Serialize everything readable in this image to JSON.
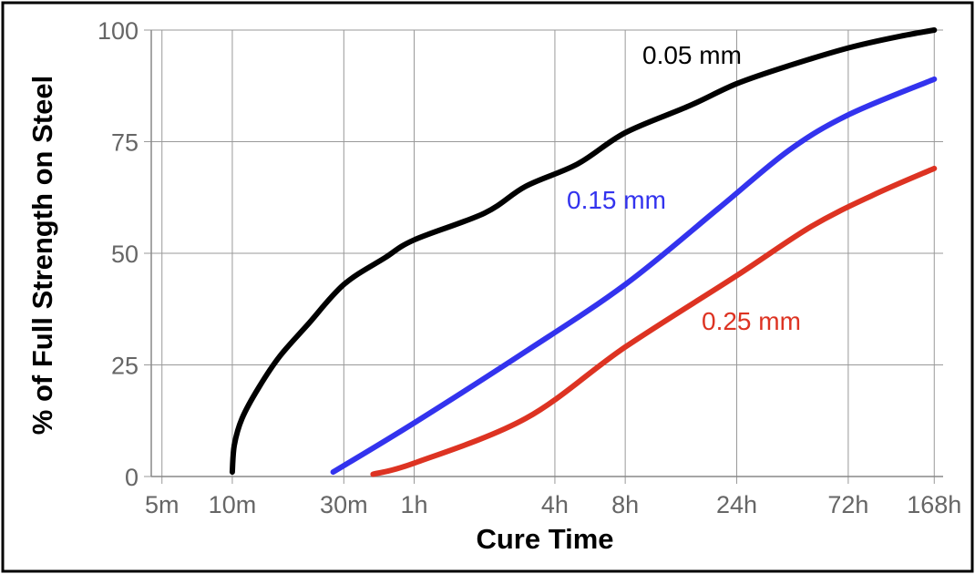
{
  "chart_data": {
    "type": "line",
    "title": "",
    "xlabel": "Cure Time",
    "ylabel": "% of Full Strength on Steel",
    "x_scale": "log",
    "x_unit": "minutes",
    "xlim": [
      4.5,
      11000
    ],
    "ylim": [
      0,
      100
    ],
    "x_ticks": [
      {
        "label": "5m",
        "value": 5
      },
      {
        "label": "10m",
        "value": 10
      },
      {
        "label": "30m",
        "value": 30
      },
      {
        "label": "1h",
        "value": 60
      },
      {
        "label": "4h",
        "value": 240
      },
      {
        "label": "8h",
        "value": 480
      },
      {
        "label": "24h",
        "value": 1440
      },
      {
        "label": "72h",
        "value": 4320
      },
      {
        "label": "168h",
        "value": 10080
      }
    ],
    "y_ticks": [
      {
        "label": "0",
        "value": 0
      },
      {
        "label": "25",
        "value": 25
      },
      {
        "label": "50",
        "value": 50
      },
      {
        "label": "75",
        "value": 75
      },
      {
        "label": "100",
        "value": 100
      }
    ],
    "grid": true,
    "series": [
      {
        "name": "0.05 mm",
        "color": "#000000",
        "points": [
          {
            "x": 10,
            "y": 1
          },
          {
            "x": 10.2,
            "y": 7
          },
          {
            "x": 11,
            "y": 13
          },
          {
            "x": 13,
            "y": 20
          },
          {
            "x": 16,
            "y": 27
          },
          {
            "x": 21,
            "y": 34
          },
          {
            "x": 30,
            "y": 43
          },
          {
            "x": 45,
            "y": 49
          },
          {
            "x": 60,
            "y": 53
          },
          {
            "x": 120,
            "y": 59
          },
          {
            "x": 180,
            "y": 65
          },
          {
            "x": 300,
            "y": 70
          },
          {
            "x": 480,
            "y": 77
          },
          {
            "x": 900,
            "y": 83
          },
          {
            "x": 1440,
            "y": 88
          },
          {
            "x": 2400,
            "y": 92
          },
          {
            "x": 4320,
            "y": 96
          },
          {
            "x": 7000,
            "y": 98.5
          },
          {
            "x": 10080,
            "y": 100
          }
        ]
      },
      {
        "name": "0.15 mm",
        "color": "#3333ee",
        "points": [
          {
            "x": 27,
            "y": 1
          },
          {
            "x": 60,
            "y": 12
          },
          {
            "x": 180,
            "y": 28
          },
          {
            "x": 480,
            "y": 43
          },
          {
            "x": 1200,
            "y": 60
          },
          {
            "x": 2400,
            "y": 73
          },
          {
            "x": 4320,
            "y": 81
          },
          {
            "x": 10080,
            "y": 89
          }
        ]
      },
      {
        "name": "0.25 mm",
        "color": "#dd3322",
        "points": [
          {
            "x": 40,
            "y": 0.5
          },
          {
            "x": 60,
            "y": 3
          },
          {
            "x": 180,
            "y": 13
          },
          {
            "x": 480,
            "y": 29
          },
          {
            "x": 1440,
            "y": 45
          },
          {
            "x": 3000,
            "y": 56
          },
          {
            "x": 5500,
            "y": 63
          },
          {
            "x": 10080,
            "y": 69
          }
        ]
      }
    ]
  }
}
